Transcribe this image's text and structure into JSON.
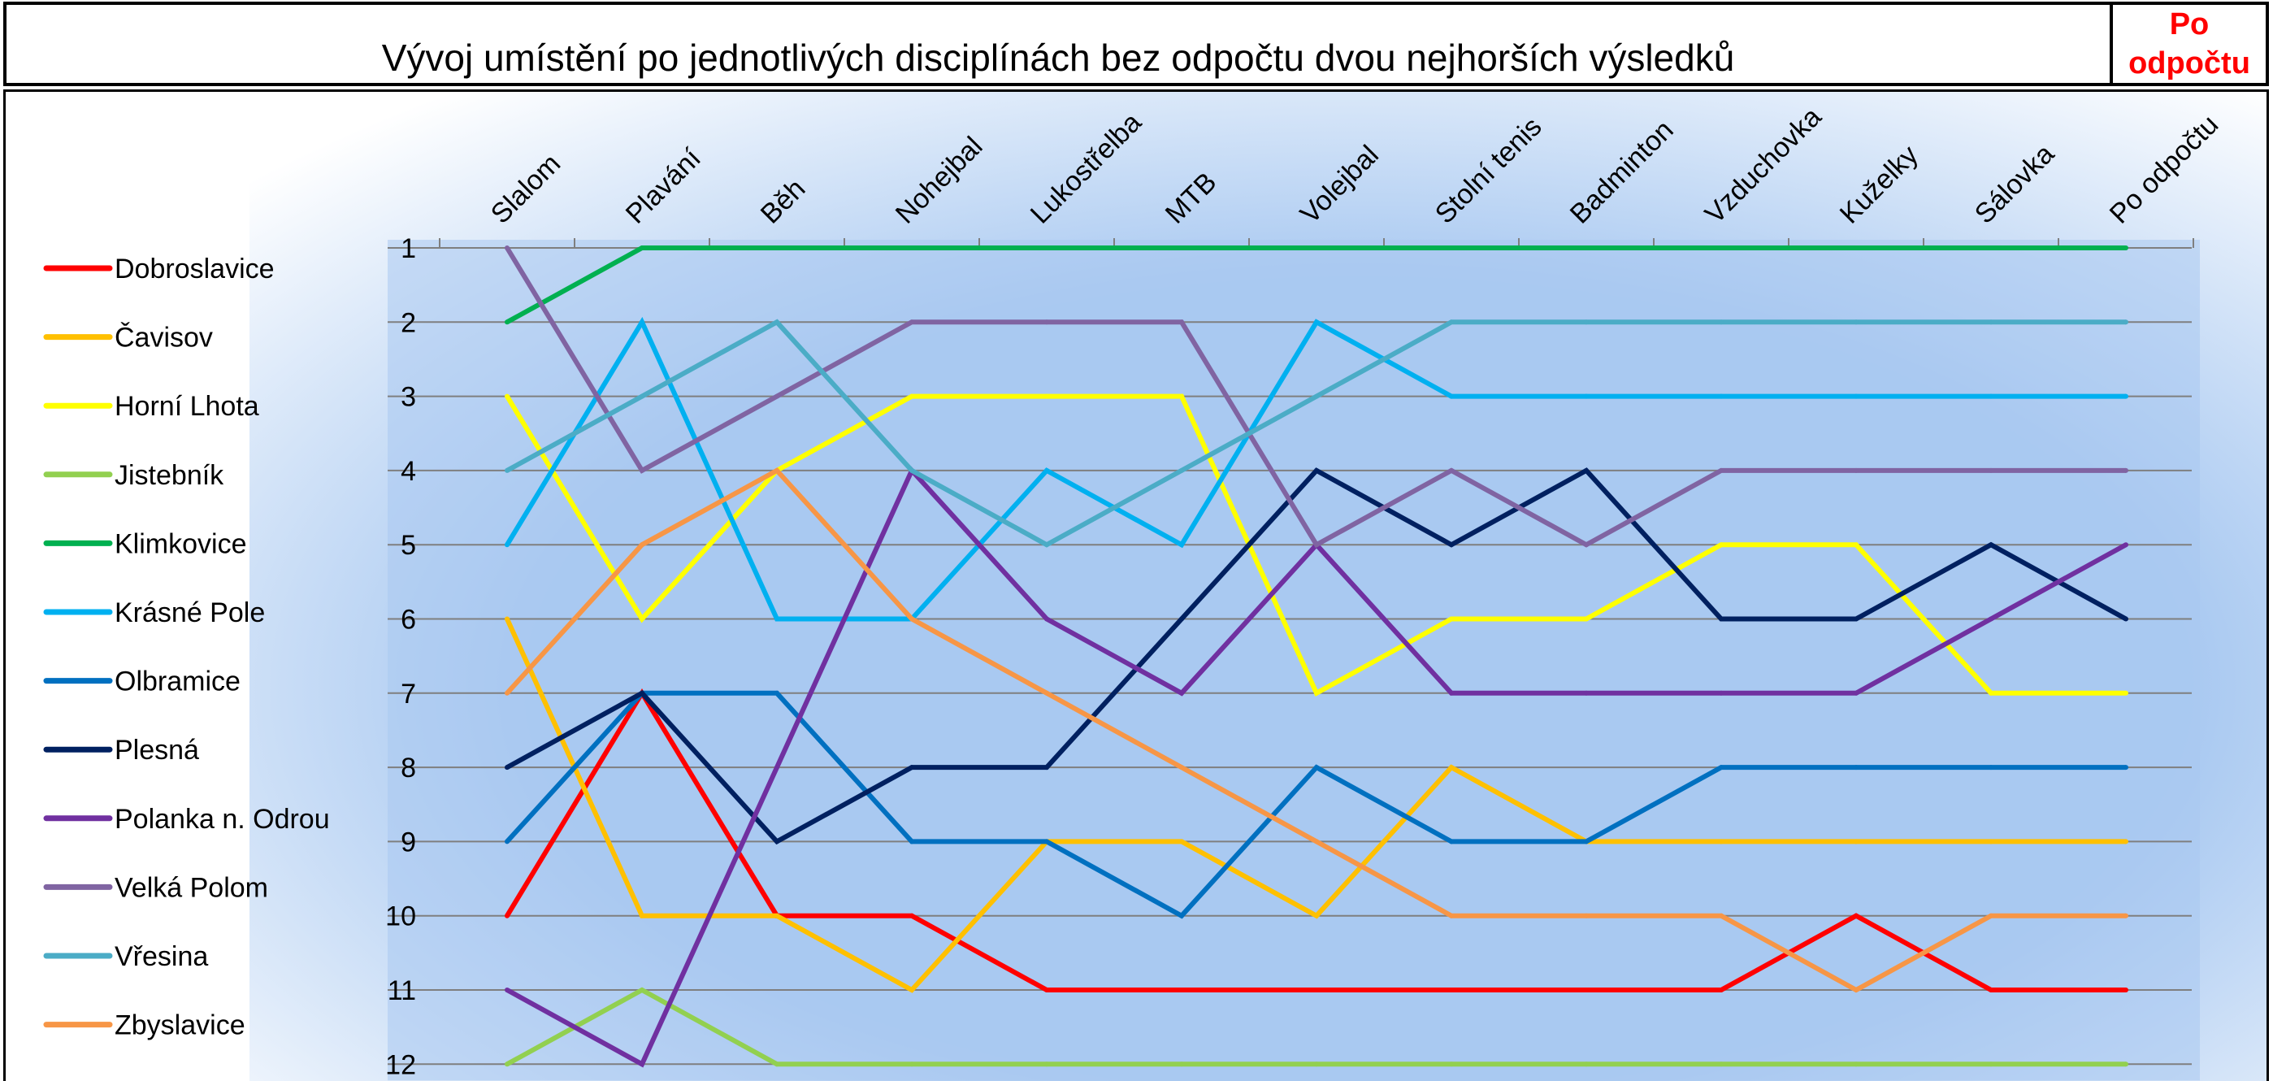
{
  "header": {
    "title": "Vývoj umístění po jednotlivých disciplínách bez odpočtu  dvou nejhorších výsledků",
    "right_label_line1": "Po",
    "right_label_line2": "odpočtu",
    "right_label_color": "#ff0000"
  },
  "chart_data": {
    "type": "line",
    "title": "Vývoj umístění po jednotlivých disciplínách bez odpočtu  dvou nejhorších výsledků",
    "xlabel": "",
    "ylabel": "",
    "categories": [
      "Slalom",
      "Plavání",
      "Běh",
      "Nohejbal",
      "Lukostřelba",
      "MTB",
      "Volejbal",
      "Stolní tenis",
      "Badminton",
      "Vzduchovka",
      "Kuželky",
      "Sálovka",
      "Po odpočtu"
    ],
    "y_ticks": [
      1,
      2,
      3,
      4,
      5,
      6,
      7,
      8,
      9,
      10,
      11,
      12
    ],
    "ylim": [
      1,
      12
    ],
    "y_reversed": true,
    "grid": true,
    "legend_position": "left",
    "plot_background": "#a9c9f1",
    "series": [
      {
        "name": "Dobroslavice",
        "color": "#ff0000",
        "values": [
          10,
          7,
          10,
          10,
          11,
          11,
          11,
          11,
          11,
          11,
          10,
          11,
          11
        ]
      },
      {
        "name": "Čavisov",
        "color": "#ffc000",
        "values": [
          6,
          10,
          10,
          11,
          9,
          9,
          10,
          8,
          9,
          9,
          9,
          9,
          9
        ]
      },
      {
        "name": "Horní Lhota",
        "color": "#ffff00",
        "values": [
          3,
          6,
          4,
          3,
          3,
          3,
          7,
          6,
          6,
          5,
          5,
          7,
          7
        ]
      },
      {
        "name": "Jistebník",
        "color": "#92d050",
        "values": [
          12,
          11,
          12,
          12,
          12,
          12,
          12,
          12,
          12,
          12,
          12,
          12,
          12
        ]
      },
      {
        "name": "Klimkovice",
        "color": "#00b050",
        "values": [
          2,
          1,
          1,
          1,
          1,
          1,
          1,
          1,
          1,
          1,
          1,
          1,
          1
        ]
      },
      {
        "name": "Krásné Pole",
        "color": "#00b0f0",
        "values": [
          5,
          2,
          6,
          6,
          4,
          5,
          2,
          3,
          3,
          3,
          3,
          3,
          3
        ]
      },
      {
        "name": "Olbramice",
        "color": "#0070c0",
        "values": [
          9,
          7,
          7,
          9,
          9,
          10,
          8,
          9,
          9,
          8,
          8,
          8,
          8
        ]
      },
      {
        "name": "Plesná",
        "color": "#002060",
        "values": [
          8,
          7,
          9,
          8,
          8,
          6,
          4,
          5,
          4,
          6,
          6,
          5,
          6
        ]
      },
      {
        "name": "Polanka n. Odrou",
        "color": "#7030a0",
        "values": [
          11,
          12,
          8,
          4,
          6,
          7,
          5,
          7,
          7,
          7,
          7,
          6,
          5
        ]
      },
      {
        "name": "Velká Polom",
        "color": "#8064a2",
        "values": [
          1,
          4,
          3,
          2,
          2,
          2,
          5,
          4,
          5,
          4,
          4,
          4,
          4
        ]
      },
      {
        "name": "Vřesina",
        "color": "#4bacc6",
        "values": [
          4,
          3,
          2,
          4,
          5,
          4,
          3,
          2,
          2,
          2,
          2,
          2,
          2
        ]
      },
      {
        "name": "Zbyslavice",
        "color": "#f79646",
        "values": [
          7,
          5,
          4,
          6,
          7,
          8,
          9,
          10,
          10,
          10,
          11,
          10,
          10
        ]
      }
    ]
  }
}
